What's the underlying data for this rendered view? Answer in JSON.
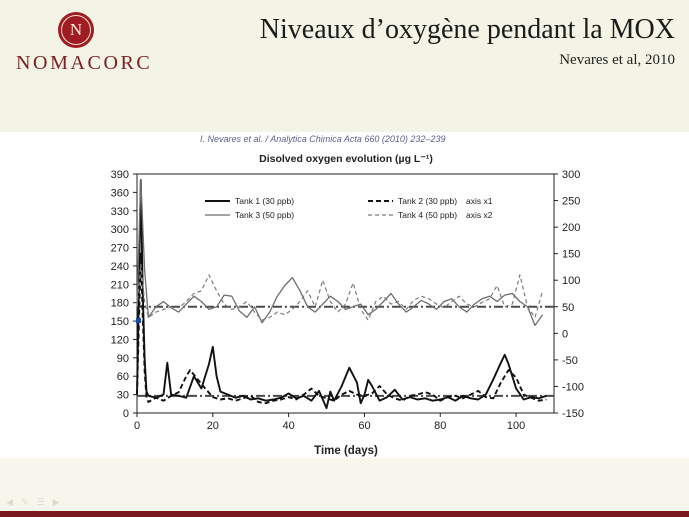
{
  "header": {
    "logo_letter": "N",
    "logo_word": "NOMACORC",
    "title": "Niveaux d’oxygène pendant la MOX",
    "subtitle": "Nevares et al, 2010"
  },
  "figure": {
    "citation": "I. Nevares et al. / Analytica Chimica Acta 660 (2010) 232–239"
  },
  "chart_data": {
    "type": "line",
    "title": "Disolved oxygen evolution (µg L⁻¹)",
    "xlabel": "Time (days)",
    "ylabel": "",
    "xlim": [
      0,
      110
    ],
    "ylim_left": [
      0,
      390
    ],
    "ylim_right": [
      -150,
      300
    ],
    "x_ticks": [
      0,
      20,
      40,
      60,
      80,
      100
    ],
    "y_ticks_left": [
      0,
      30,
      60,
      90,
      120,
      150,
      180,
      210,
      240,
      270,
      300,
      330,
      360,
      390
    ],
    "y_ticks_right": [
      -150,
      -100,
      -50,
      0,
      50,
      100,
      150,
      200,
      250,
      300
    ],
    "legend": [
      "Tank 1 (30 ppb)",
      "Tank 2 (30 ppb)",
      "axis x1",
      "Tank 3 (50 ppb)",
      "Tank 4 (50 ppb)",
      "axis x2"
    ],
    "legend_position": "top",
    "grid": false,
    "reference_lines": [
      {
        "name": "axis x1",
        "axis": "left",
        "y": 28
      },
      {
        "name": "axis x2",
        "axis": "right",
        "y": 50
      }
    ],
    "series": [
      {
        "name": "Tank 1 (30 ppb)",
        "axis": "left",
        "style": "solid-black",
        "x": [
          0,
          1,
          1.5,
          2,
          2.5,
          3,
          5,
          7,
          8,
          9,
          11,
          13,
          15,
          17,
          19,
          20,
          21,
          22,
          24,
          26,
          28,
          30,
          32,
          34,
          36,
          38,
          40,
          42,
          44,
          46,
          48,
          49,
          50,
          51,
          52,
          54,
          56,
          58,
          59,
          60,
          61,
          62,
          64,
          66,
          68,
          70,
          72,
          74,
          76,
          78,
          80,
          82,
          84,
          86,
          88,
          90,
          92,
          94,
          96,
          97,
          98,
          100,
          102,
          104,
          106,
          108
        ],
        "y": [
          30,
          380,
          200,
          90,
          35,
          28,
          25,
          30,
          82,
          30,
          28,
          25,
          60,
          40,
          80,
          108,
          60,
          35,
          30,
          25,
          28,
          22,
          24,
          20,
          22,
          25,
          32,
          24,
          28,
          20,
          36,
          22,
          8,
          35,
          20,
          44,
          74,
          50,
          16,
          30,
          54,
          44,
          20,
          26,
          38,
          22,
          26,
          22,
          24,
          20,
          22,
          26,
          20,
          28,
          24,
          22,
          30,
          55,
          82,
          95,
          80,
          40,
          22,
          26,
          24,
          28
        ]
      },
      {
        "name": "Tank 2 (30 ppb)",
        "axis": "left",
        "style": "dashed-black",
        "x": [
          0,
          1,
          1.5,
          2,
          2.5,
          3,
          5,
          7,
          9,
          11,
          13,
          14,
          16,
          18,
          20,
          22,
          24,
          26,
          28,
          30,
          32,
          34,
          36,
          38,
          40,
          42,
          44,
          46,
          48,
          50,
          52,
          54,
          56,
          58,
          60,
          62,
          64,
          66,
          68,
          70,
          72,
          74,
          76,
          78,
          80,
          82,
          84,
          86,
          88,
          90,
          92,
          94,
          96,
          98,
          100,
          102,
          104,
          106,
          108
        ],
        "y": [
          30,
          260,
          160,
          70,
          25,
          18,
          25,
          20,
          28,
          34,
          60,
          70,
          55,
          40,
          26,
          22,
          24,
          20,
          24,
          28,
          18,
          16,
          20,
          22,
          26,
          22,
          30,
          40,
          28,
          24,
          20,
          30,
          36,
          30,
          28,
          32,
          44,
          30,
          24,
          20,
          28,
          30,
          34,
          30,
          20,
          26,
          28,
          24,
          30,
          36,
          26,
          24,
          50,
          70,
          58,
          30,
          25,
          20,
          22
        ]
      },
      {
        "name": "Tank 3 (50 ppb)",
        "axis": "right",
        "style": "solid-gray",
        "x": [
          0,
          1,
          2,
          3,
          5,
          7,
          9,
          11,
          13,
          15,
          17,
          19,
          21,
          23,
          25,
          27,
          29,
          31,
          33,
          35,
          37,
          39,
          41,
          43,
          45,
          47,
          49,
          51,
          53,
          55,
          57,
          59,
          61,
          63,
          65,
          67,
          69,
          71,
          73,
          75,
          77,
          79,
          81,
          83,
          85,
          87,
          89,
          91,
          93,
          95,
          97,
          99,
          101,
          103,
          105,
          107
        ],
        "y": [
          50,
          290,
          120,
          30,
          50,
          60,
          48,
          40,
          55,
          70,
          60,
          45,
          50,
          72,
          70,
          42,
          30,
          50,
          20,
          40,
          70,
          90,
          105,
          80,
          50,
          40,
          55,
          70,
          60,
          45,
          50,
          55,
          35,
          45,
          60,
          75,
          55,
          40,
          50,
          62,
          55,
          45,
          60,
          65,
          50,
          40,
          55,
          65,
          70,
          60,
          72,
          75,
          60,
          50,
          15,
          35
        ]
      },
      {
        "name": "Tank 4 (50 ppb)",
        "axis": "right",
        "style": "dashed-gray",
        "x": [
          0,
          1,
          2,
          3,
          5,
          7,
          9,
          11,
          13,
          15,
          17,
          19,
          21,
          23,
          25,
          27,
          29,
          31,
          33,
          35,
          37,
          39,
          41,
          43,
          45,
          47,
          49,
          51,
          53,
          55,
          57,
          59,
          61,
          63,
          65,
          67,
          69,
          71,
          73,
          75,
          77,
          79,
          81,
          83,
          85,
          87,
          89,
          91,
          93,
          95,
          97,
          99,
          101,
          103,
          105,
          107
        ],
        "y": [
          50,
          130,
          60,
          30,
          40,
          45,
          50,
          48,
          60,
          75,
          80,
          110,
          80,
          55,
          45,
          50,
          60,
          40,
          25,
          30,
          40,
          35,
          45,
          60,
          80,
          50,
          100,
          60,
          40,
          55,
          95,
          45,
          25,
          60,
          70,
          55,
          60,
          45,
          62,
          70,
          65,
          55,
          48,
          60,
          70,
          55,
          50,
          58,
          65,
          90,
          50,
          55,
          110,
          50,
          30,
          80
        ]
      }
    ]
  }
}
